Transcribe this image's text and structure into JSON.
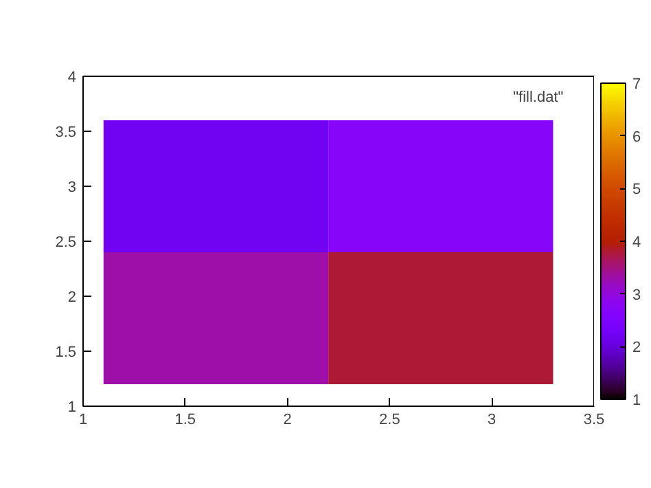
{
  "chart_data": {
    "type": "heatmap",
    "x": [
      1.65,
      2.75
    ],
    "y": [
      3.0,
      1.8
    ],
    "cells": [
      [
        2.2,
        2.7
      ],
      [
        3.3,
        3.8
      ]
    ],
    "xlim": [
      1,
      3.5
    ],
    "xticks": [
      1,
      1.5,
      2,
      2.5,
      3,
      3.5
    ],
    "ylim": [
      1,
      4
    ],
    "yticks": [
      1,
      1.5,
      2,
      2.5,
      3,
      3.5,
      4
    ],
    "clim": [
      1,
      7
    ],
    "cticks": [
      1,
      2,
      3,
      4,
      5,
      6,
      7
    ],
    "annotations": [
      "\"fill.dat\""
    ],
    "grid": false
  }
}
